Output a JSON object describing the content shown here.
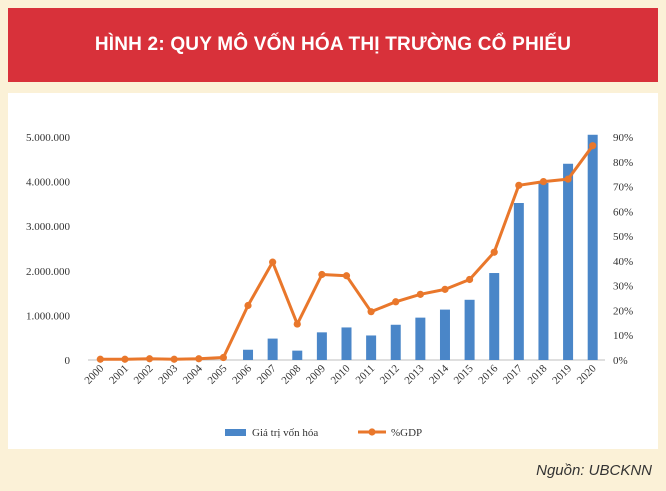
{
  "header": {
    "title": "HÌNH 2: QUY MÔ VỐN HÓA THỊ TRƯỜNG CỔ PHIẾU"
  },
  "source": {
    "text": "Nguồn: UBCKNN"
  },
  "chart_data": {
    "type": "bar",
    "categories": [
      "2000",
      "2001",
      "2002",
      "2003",
      "2004",
      "2005",
      "2006",
      "2007",
      "2008",
      "2009",
      "2010",
      "2011",
      "2012",
      "2013",
      "2014",
      "2015",
      "2016",
      "2017",
      "2018",
      "2019",
      "2020"
    ],
    "series": [
      {
        "name": "Giá trị vốn hóa",
        "type": "bar",
        "axis": "left",
        "color": "#4a86c8",
        "values": [
          0,
          0,
          0,
          0,
          0,
          0,
          230000,
          480000,
          210000,
          620000,
          730000,
          550000,
          790000,
          950000,
          1130000,
          1350000,
          1950000,
          3520000,
          3970000,
          4400000,
          5050000
        ]
      },
      {
        "name": "%GDP",
        "type": "line",
        "axis": "right",
        "color": "#e9772b",
        "values": [
          0.3,
          0.3,
          0.5,
          0.3,
          0.5,
          1.0,
          22.0,
          39.5,
          14.5,
          34.5,
          34.0,
          19.5,
          23.5,
          26.5,
          28.5,
          32.5,
          43.5,
          70.5,
          72.0,
          73.0,
          86.5
        ]
      }
    ],
    "y_left": {
      "ylim": [
        0,
        5000000
      ],
      "ticks": [
        "0",
        "1.000.000",
        "2.000.000",
        "3.000.000",
        "4.000.000",
        "5.000.000"
      ]
    },
    "y_right": {
      "ylim": [
        0,
        90
      ],
      "ticks": [
        "0%",
        "10%",
        "20%",
        "30%",
        "40%",
        "50%",
        "60%",
        "70%",
        "80%",
        "90%"
      ]
    },
    "legend_position": "bottom-center",
    "grid": false
  }
}
